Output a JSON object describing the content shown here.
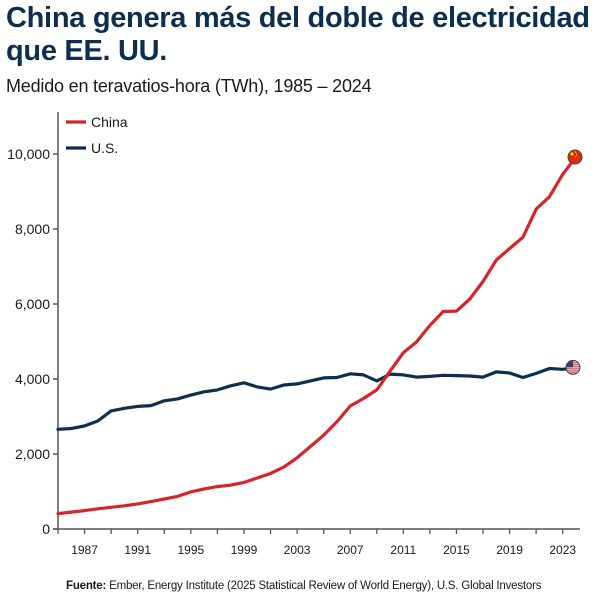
{
  "chart_data": {
    "type": "line",
    "title": "China genera más del doble de electricidad que EE. UU.",
    "subtitle": "Medido en teravatios-hora (TWh), 1985 – 2024",
    "xlabel": "",
    "ylabel": "",
    "x": [
      1985,
      1986,
      1987,
      1988,
      1989,
      1990,
      1991,
      1992,
      1993,
      1994,
      1995,
      1996,
      1997,
      1998,
      1999,
      2000,
      2001,
      2002,
      2003,
      2004,
      2005,
      2006,
      2007,
      2008,
      2009,
      2010,
      2011,
      2012,
      2013,
      2014,
      2015,
      2016,
      2017,
      2018,
      2019,
      2020,
      2021,
      2022,
      2023,
      2024
    ],
    "xlim": [
      1985,
      2024
    ],
    "ylim": [
      0,
      11000
    ],
    "xticks": [
      1987,
      1991,
      1995,
      1999,
      2003,
      2007,
      2011,
      2015,
      2019,
      2023
    ],
    "xtick_labels": [
      "1987",
      "1991",
      "1995",
      "1999",
      "2003",
      "2007",
      "2011",
      "2015",
      "2019",
      "2023"
    ],
    "yticks": [
      0,
      2000,
      4000,
      6000,
      8000,
      10000
    ],
    "ytick_labels": [
      "0",
      "2,000",
      "4,000",
      "6,000",
      "8,000",
      "10,000"
    ],
    "grid": false,
    "legend_position": "top-left",
    "series": [
      {
        "name": "China",
        "color": "#d7242b",
        "end_marker": "china-flag",
        "values": [
          410,
          450,
          490,
          540,
          580,
          620,
          670,
          730,
          800,
          870,
          990,
          1070,
          1130,
          1170,
          1240,
          1360,
          1480,
          1650,
          1900,
          2200,
          2500,
          2860,
          3280,
          3480,
          3710,
          4210,
          4700,
          4990,
          5430,
          5800,
          5810,
          6130,
          6600,
          7170,
          7480,
          7780,
          8530,
          8860,
          9460,
          9920
        ]
      },
      {
        "name": "U.S.",
        "color": "#0d2f4f",
        "end_marker": "us-flag",
        "values": [
          2660,
          2680,
          2750,
          2880,
          3150,
          3220,
          3270,
          3290,
          3420,
          3470,
          3570,
          3660,
          3710,
          3820,
          3900,
          3790,
          3730,
          3840,
          3870,
          3950,
          4030,
          4040,
          4140,
          4110,
          3950,
          4130,
          4110,
          4050,
          4070,
          4100,
          4090,
          4080,
          4050,
          4190,
          4160,
          4040,
          4150,
          4280,
          4260,
          4310
        ]
      }
    ],
    "source_label": "Fuente:",
    "source_text": " Ember, Energy Institute (2025 Statistical Review of World Energy), U.S. Global Investors"
  }
}
